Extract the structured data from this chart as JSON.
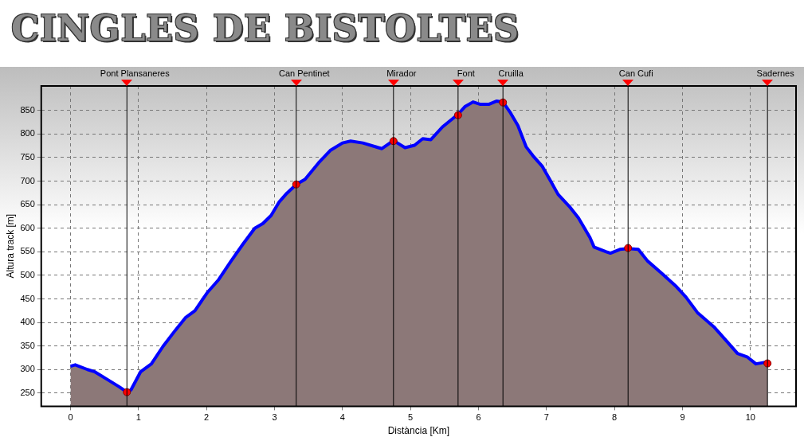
{
  "chart_data": {
    "type": "area",
    "title": "CINGLES DE BISTOLTES",
    "xlabel": "Distància [Km]",
    "ylabel": "Altura track [m]",
    "xlim": [
      -0.43,
      10.67
    ],
    "ylim": [
      222,
      902
    ],
    "xticks": [
      0,
      1,
      2,
      3,
      4,
      5,
      6,
      7,
      8,
      9,
      10
    ],
    "yticks": [
      250,
      300,
      350,
      400,
      450,
      500,
      550,
      600,
      650,
      700,
      750,
      800,
      850
    ],
    "grid": true,
    "marker": "none",
    "line_style": "solid",
    "series": [
      {
        "color": "#0000ff",
        "x": [
          0,
          0.07,
          0.25,
          0.36,
          0.54,
          0.72,
          0.83,
          0.89,
          1.03,
          1.19,
          1.36,
          1.54,
          1.69,
          1.83,
          2.01,
          2.18,
          2.36,
          2.54,
          2.71,
          2.83,
          2.95,
          3.07,
          3.18,
          3.32,
          3.45,
          3.65,
          3.82,
          4.0,
          4.12,
          4.3,
          4.53,
          4.58,
          4.75,
          4.92,
          5.06,
          5.18,
          5.3,
          5.47,
          5.7,
          5.8,
          5.92,
          6.03,
          6.15,
          6.27,
          6.36,
          6.47,
          6.58,
          6.7,
          6.8,
          6.94,
          7.05,
          7.17,
          7.35,
          7.47,
          7.64,
          7.7,
          7.88,
          7.94,
          8.08,
          8.2,
          8.35,
          8.49,
          8.69,
          8.91,
          9.05,
          9.22,
          9.46,
          9.64,
          9.81,
          9.95,
          10.08,
          10.2,
          10.25
        ],
        "values": [
          307,
          310,
          300,
          295,
          279,
          263,
          252,
          257,
          295,
          312,
          349,
          383,
          410,
          425,
          463,
          491,
          530,
          567,
          600,
          610,
          627,
          656,
          674,
          693,
          704,
          739,
          765,
          781,
          785,
          781,
          771,
          769,
          786,
          771,
          776,
          790,
          788,
          815,
          842,
          858,
          868,
          863,
          863,
          870,
          868,
          845,
          818,
          773,
          754,
          731,
          703,
          672,
          644,
          622,
          580,
          560,
          550,
          547,
          555,
          557,
          555,
          530,
          505,
          476,
          454,
          421,
          391,
          362,
          334,
          327,
          312,
          315,
          315
        ]
      },
      {
        "type": "scatter",
        "color": "#ff0000",
        "marker": "circle",
        "x": [
          0.83,
          3.32,
          4.75,
          5.7,
          6.36,
          8.2,
          10.25
        ],
        "values": [
          252,
          693,
          785,
          840,
          867,
          558,
          313
        ]
      }
    ],
    "ref_lines": [
      {
        "axis": "x",
        "value": 0.83,
        "label": "Pont Plansaneres",
        "color": "#000000"
      },
      {
        "axis": "x",
        "value": 3.32,
        "label": "Can Pentinet",
        "color": "#000000"
      },
      {
        "axis": "x",
        "value": 4.75,
        "label": "Mirador",
        "color": "#000000"
      },
      {
        "axis": "x",
        "value": 5.7,
        "label": "Font",
        "color": "#000000"
      },
      {
        "axis": "x",
        "value": 6.36,
        "label": "Cruilla",
        "color": "#000000"
      },
      {
        "axis": "x",
        "value": 8.2,
        "label": "Can Cufi",
        "color": "#000000"
      },
      {
        "axis": "x",
        "value": 10.25,
        "label": "Sadernes",
        "color": "#000000"
      }
    ]
  }
}
